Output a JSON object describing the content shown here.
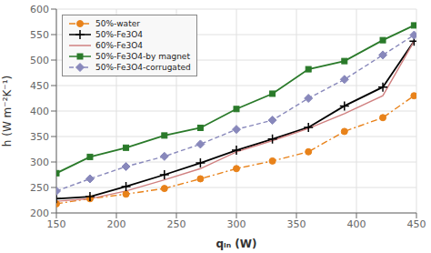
{
  "chart_data": {
    "type": "line",
    "xlabel": "qᵢₙ (W)",
    "ylabel": "h (W m⁻²K⁻¹)",
    "x": [
      150,
      178,
      208,
      240,
      270,
      300,
      330,
      360,
      390,
      422,
      448
    ],
    "series": [
      {
        "name": "50%-water",
        "color": "#E8821A",
        "marker": "circle",
        "line_style": "dashdot",
        "values": [
          218,
          228,
          237,
          248,
          267,
          287,
          302,
          320,
          360,
          387,
          430
        ]
      },
      {
        "name": "50%-Fe3O4",
        "color": "#000000",
        "marker": "plus",
        "line_style": "solid",
        "values": [
          228,
          232,
          252,
          275,
          298,
          323,
          345,
          368,
          410,
          447,
          537
        ]
      },
      {
        "name": "60%-Fe3O4",
        "color": "#D08080",
        "marker": "none",
        "line_style": "solid",
        "values": [
          223,
          228,
          243,
          265,
          287,
          320,
          342,
          366,
          395,
          430,
          537
        ]
      },
      {
        "name": "50%-Fe3O4-by magnet",
        "color": "#2A7A2A",
        "marker": "square",
        "line_style": "solid",
        "values": [
          278,
          310,
          328,
          352,
          367,
          404,
          434,
          482,
          498,
          539,
          568
        ]
      },
      {
        "name": "50%-Fe3O4-corrugated",
        "color": "#8888BB",
        "marker": "diamond",
        "line_style": "dashed",
        "values": [
          243,
          267,
          291,
          311,
          335,
          364,
          382,
          425,
          462,
          510,
          549
        ]
      }
    ],
    "xlim": [
      150,
      450
    ],
    "ylim": [
      200,
      600
    ],
    "xticks": [
      150,
      200,
      250,
      300,
      350,
      400,
      450
    ],
    "yticks": [
      200,
      250,
      300,
      350,
      400,
      450,
      500,
      550,
      600
    ],
    "grid": true,
    "legend": "upper left"
  }
}
